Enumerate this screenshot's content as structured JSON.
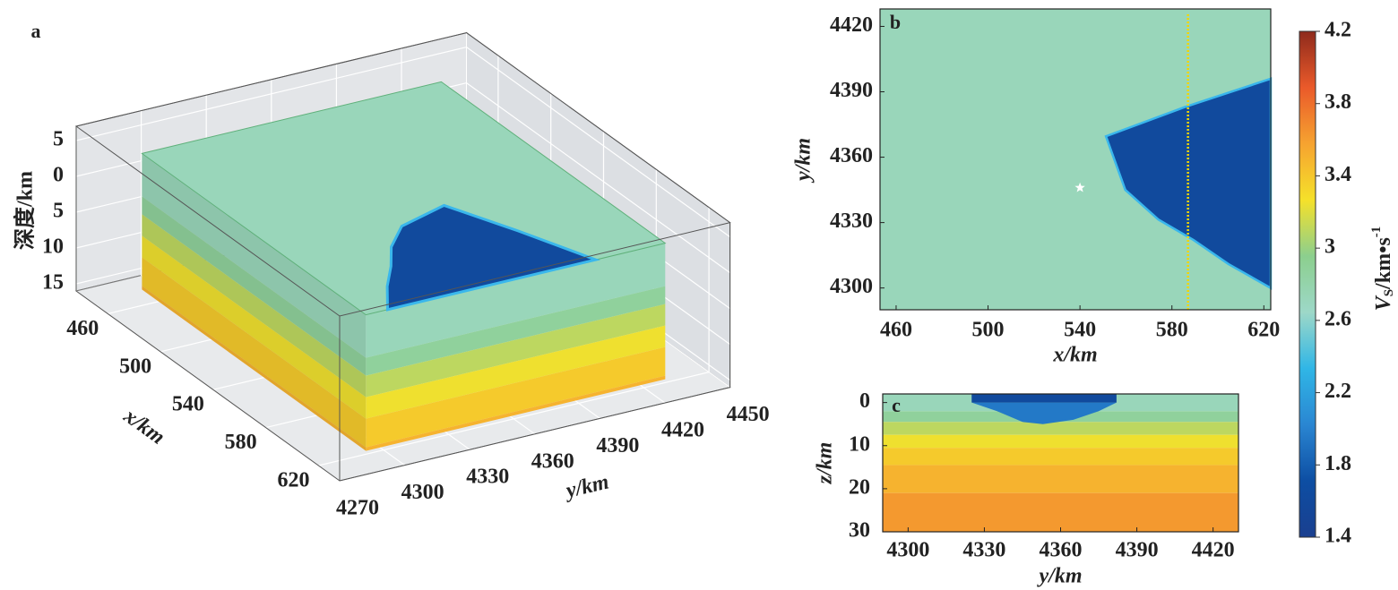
{
  "chart_data": [
    {
      "type": "block3d",
      "label": "a",
      "zlabel": "深度/km",
      "xlabel": "x/km",
      "ylabel": "y/km",
      "xlim": [
        436,
        636
      ],
      "ylim": [
        4270,
        4450
      ],
      "zlim": [
        -7,
        16
      ],
      "xticks": [
        460,
        500,
        540,
        580,
        620
      ],
      "yticks": [
        4270,
        4300,
        4330,
        4360,
        4390,
        4420,
        4450
      ],
      "zticks": [
        {
          "value": -5,
          "label": "5"
        },
        0,
        5,
        10,
        15
      ],
      "block_x": [
        453,
        623
      ],
      "block_y": [
        4290,
        4428
      ],
      "surface_z": -4,
      "bottom_z": 15
    },
    {
      "type": "map",
      "label": "b",
      "xlabel": "x/km",
      "ylabel": "y/km",
      "xlim": [
        453,
        623
      ],
      "ylim": [
        4290,
        4428
      ],
      "xticks": [
        460,
        500,
        540,
        580,
        620
      ],
      "yticks": [
        4300,
        4330,
        4360,
        4390,
        4420
      ],
      "background_vs": 2.72,
      "anomaly": {
        "x": [
          623,
          585.6,
          551.3,
          559.7,
          574.1,
          589.4,
          604.6,
          623
        ],
        "y": [
          4396,
          4383,
          4369.6,
          4345,
          4331.4,
          4322,
          4311,
          4300
        ],
        "vs": 1.62
      },
      "station_x": 587,
      "source": {
        "x": 540,
        "y": 4346
      }
    },
    {
      "type": "section",
      "label": "c",
      "xlabel": "y/km",
      "ylabel": "z/km",
      "xlim": [
        4290,
        4430
      ],
      "ylim": [
        -2,
        30
      ],
      "inverted": true,
      "xticks": [
        4300,
        4330,
        4360,
        4390,
        4420
      ],
      "yticks": [
        0,
        10,
        20,
        30
      ],
      "layers": {
        "top": [
          -2,
          2,
          4.5,
          7.5,
          10.5,
          14.5,
          21
        ],
        "vs": [
          2.72,
          2.88,
          3.1,
          3.25,
          3.38,
          3.5,
          3.62
        ]
      },
      "basin": {
        "y": [
          4325,
          4335,
          4345,
          4353,
          4365,
          4375,
          4382
        ],
        "z": [
          0,
          2,
          4.5,
          5,
          4,
          2,
          0
        ],
        "vs": 1.95
      }
    },
    {
      "type": "colorbar",
      "label_parts": [
        "V",
        "S",
        "/km•s",
        "-1"
      ],
      "lim": [
        1.4,
        4.2
      ],
      "ticks": [
        1.4,
        1.8,
        2.2,
        2.6,
        3.0,
        3.4,
        3.8,
        4.2
      ],
      "colormap": [
        "#1a3f8f",
        "#0d4ea3",
        "#2a86d2",
        "#30b6e6",
        "#9dd8c8",
        "#8ccf8e",
        "#f5e12a",
        "#f6a330",
        "#ea5a2a",
        "#8e2a1c"
      ]
    }
  ]
}
